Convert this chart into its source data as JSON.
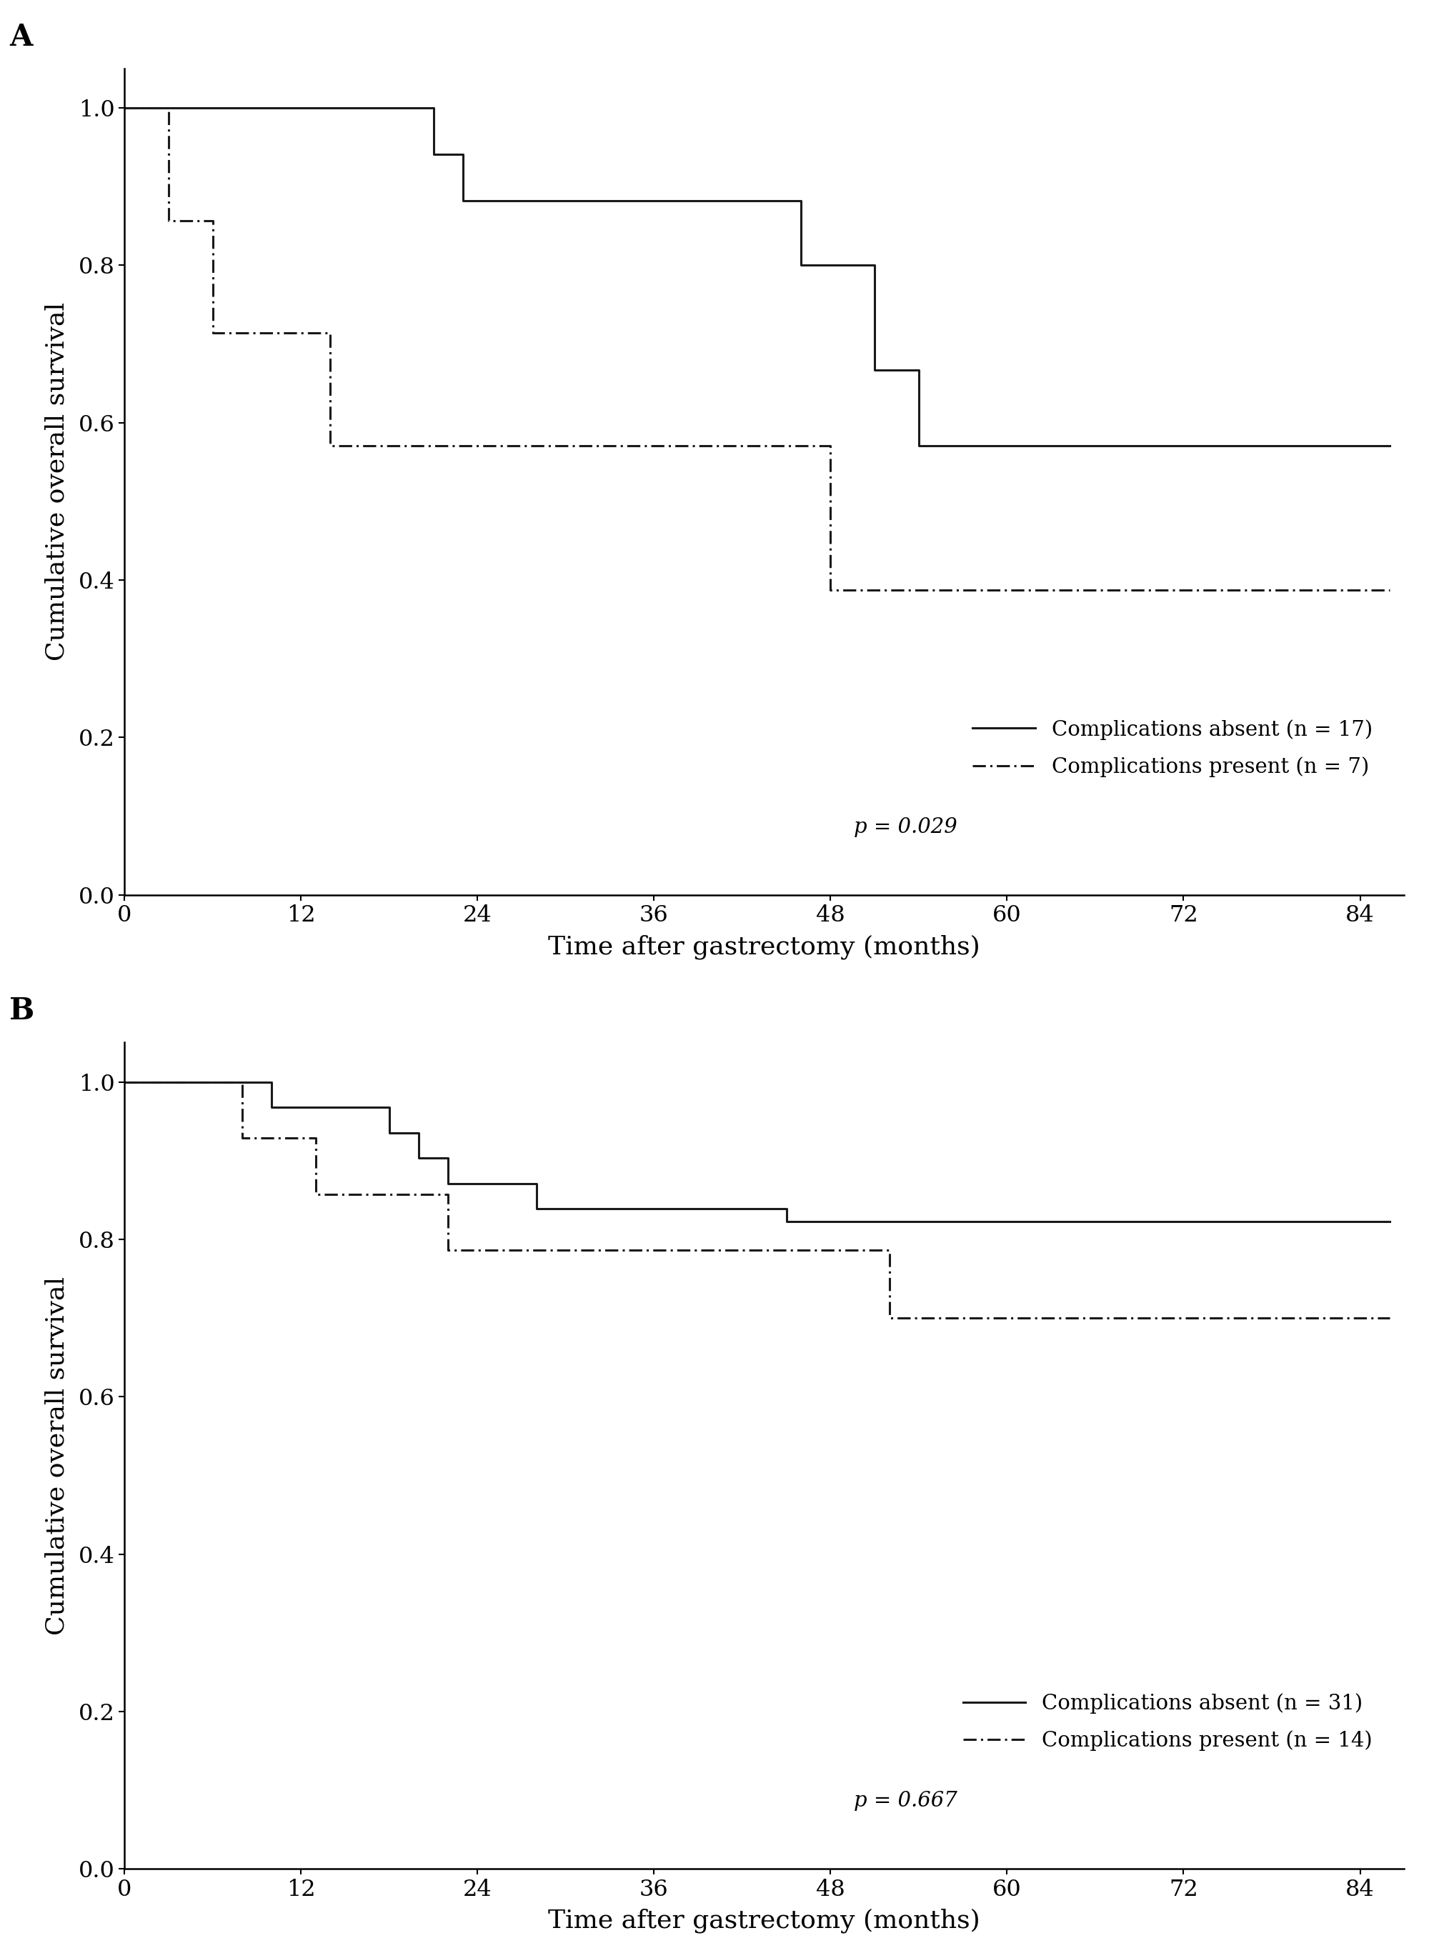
{
  "panel_A": {
    "label": "A",
    "absent_label": "Complications absent (n = 17)",
    "present_label": "Complications present (n = 7)",
    "p_value": "p = 0.029",
    "absent_x": [
      0,
      21,
      21,
      23,
      23,
      46,
      46,
      51,
      51,
      54,
      54,
      86
    ],
    "absent_y": [
      1.0,
      1.0,
      0.941,
      0.941,
      0.882,
      0.882,
      0.8,
      0.8,
      0.667,
      0.667,
      0.571,
      0.571
    ],
    "present_x": [
      0,
      3,
      3,
      6,
      6,
      10,
      10,
      14,
      14,
      46,
      46,
      48,
      48,
      54,
      54,
      86
    ],
    "present_y": [
      1.0,
      1.0,
      0.857,
      0.857,
      0.714,
      0.714,
      0.714,
      0.714,
      0.571,
      0.571,
      0.571,
      0.571,
      0.387,
      0.387,
      0.387,
      0.387
    ]
  },
  "panel_B": {
    "label": "B",
    "absent_label": "Complications absent (n = 31)",
    "present_label": "Complications present (n = 14)",
    "p_value": "p = 0.667",
    "absent_x": [
      0,
      10,
      10,
      18,
      18,
      20,
      20,
      22,
      22,
      28,
      28,
      45,
      45,
      48,
      48,
      86
    ],
    "absent_y": [
      1.0,
      1.0,
      0.968,
      0.968,
      0.935,
      0.935,
      0.903,
      0.903,
      0.871,
      0.871,
      0.839,
      0.839,
      0.823,
      0.823,
      0.823,
      0.823
    ],
    "present_x": [
      0,
      8,
      8,
      13,
      13,
      20,
      20,
      22,
      22,
      52,
      52,
      86
    ],
    "present_y": [
      1.0,
      1.0,
      0.929,
      0.929,
      0.857,
      0.857,
      0.857,
      0.857,
      0.786,
      0.786,
      0.7,
      0.7
    ]
  },
  "xlabel": "Time after gastrectomy (months)",
  "ylabel": "Cumulative overall survival",
  "xlim": [
    0,
    87
  ],
  "ylim": [
    0.0,
    1.05
  ],
  "xticks": [
    0,
    12,
    24,
    36,
    48,
    60,
    72,
    84
  ],
  "yticks": [
    0.0,
    0.2,
    0.4,
    0.6,
    0.8,
    1.0
  ],
  "line_color": "#1a1a1a",
  "line_width": 2.2,
  "background_color": "#ffffff",
  "font_size_label": 26,
  "font_size_tick": 23,
  "font_size_legend": 21,
  "font_size_panel": 30
}
